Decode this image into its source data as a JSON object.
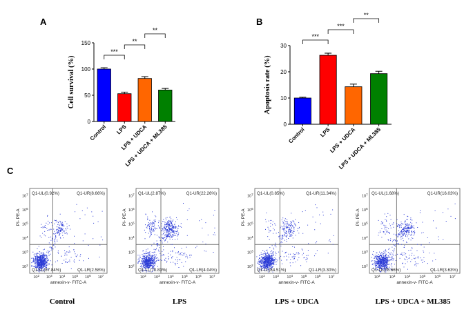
{
  "panels": {
    "a": "A",
    "b": "B",
    "c": "C"
  },
  "chart_data": [
    {
      "type": "bar",
      "panel": "A",
      "categories": [
        "Control",
        "LPS",
        "LPS + UDCA",
        "LPS + UDCA + ML385"
      ],
      "values": [
        100,
        53,
        82,
        60
      ],
      "errors": [
        2.5,
        3,
        3.5,
        3
      ],
      "colors": [
        "#0000ff",
        "#ff0000",
        "#ff6600",
        "#008000"
      ],
      "ylabel": "Cell survival (%)",
      "ylim": [
        0,
        150
      ],
      "yticks": [
        0,
        50,
        100,
        150
      ],
      "significance": [
        {
          "from": 0,
          "to": 1,
          "label": "***"
        },
        {
          "from": 1,
          "to": 2,
          "label": "**"
        },
        {
          "from": 2,
          "to": 3,
          "label": "**"
        }
      ]
    },
    {
      "type": "bar",
      "panel": "B",
      "categories": [
        "Control",
        "LPS",
        "LPS + UDCA",
        "LPS + UDCA + ML385"
      ],
      "values": [
        10,
        26.3,
        14.3,
        19.3
      ],
      "errors": [
        0.3,
        0.8,
        1,
        0.9
      ],
      "colors": [
        "#0000ff",
        "#ff0000",
        "#ff6600",
        "#008000"
      ],
      "ylabel": "Apoptosis rate (%)",
      "ylim": [
        0,
        30
      ],
      "yticks": [
        0,
        10,
        20,
        30
      ],
      "significance": [
        {
          "from": 0,
          "to": 1,
          "label": "***"
        },
        {
          "from": 1,
          "to": 2,
          "label": "***"
        },
        {
          "from": 2,
          "to": 3,
          "label": "**"
        }
      ]
    },
    {
      "type": "scatter",
      "panel": "C",
      "xlabel": "annexin-v- FITC-A",
      "ylabel": "PI- PE-A",
      "exponents": [
        "2",
        "3",
        "4",
        "5",
        "6",
        "7"
      ],
      "plots": [
        {
          "title": "Control",
          "quadrants": {
            "ul": "Q1-UL(0.92%)",
            "ur": "Q1-UR(8.66%)",
            "ll": "Q1-LL(87.84%)",
            "lr": "Q1-LR(2.58%)"
          },
          "percent": {
            "ul": 0.92,
            "ur": 8.66,
            "ll": 87.84,
            "lr": 2.58
          }
        },
        {
          "title": "LPS",
          "quadrants": {
            "ul": "Q1-UL(2.87%)",
            "ur": "Q1-UR(22.26%)",
            "ll": "Q1-LL(70.83%)",
            "lr": "Q1-LR(4.04%)"
          },
          "percent": {
            "ul": 2.87,
            "ur": 22.26,
            "ll": 70.83,
            "lr": 4.04
          }
        },
        {
          "title": "LPS + UDCA",
          "quadrants": {
            "ul": "Q1-UL(0.85%)",
            "ur": "Q1-UR(11.34%)",
            "ll": "Q1-LL(84.51%)",
            "lr": "Q1-LR(3.30%)"
          },
          "percent": {
            "ul": 0.85,
            "ur": 11.34,
            "ll": 84.51,
            "lr": 3.3
          }
        },
        {
          "title": "LPS + UDCA + ML385",
          "quadrants": {
            "ul": "Q1-UL(1.68%)",
            "ur": "Q1-UR(16.03%)",
            "ll": "Q1-LL(78.66%)",
            "lr": "Q1-LR(3.63%)"
          },
          "percent": {
            "ul": 1.68,
            "ur": 16.03,
            "ll": 78.66,
            "lr": 3.63
          }
        }
      ]
    }
  ]
}
